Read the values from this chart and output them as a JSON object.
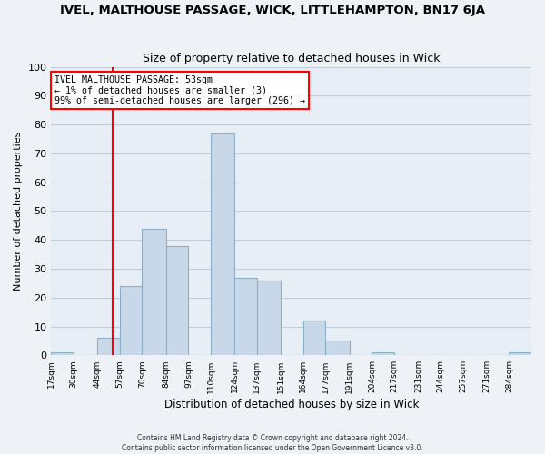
{
  "title": "IVEL, MALTHOUSE PASSAGE, WICK, LITTLEHAMPTON, BN17 6JA",
  "subtitle": "Size of property relative to detached houses in Wick",
  "xlabel": "Distribution of detached houses by size in Wick",
  "ylabel": "Number of detached properties",
  "bin_labels": [
    "17sqm",
    "30sqm",
    "44sqm",
    "57sqm",
    "70sqm",
    "84sqm",
    "97sqm",
    "110sqm",
    "124sqm",
    "137sqm",
    "151sqm",
    "164sqm",
    "177sqm",
    "191sqm",
    "204sqm",
    "217sqm",
    "231sqm",
    "244sqm",
    "257sqm",
    "271sqm",
    "284sqm"
  ],
  "bin_edges": [
    17,
    30,
    44,
    57,
    70,
    84,
    97,
    110,
    124,
    137,
    151,
    164,
    177,
    191,
    204,
    217,
    231,
    244,
    257,
    271,
    284
  ],
  "bar_heights": [
    1,
    0,
    6,
    24,
    44,
    38,
    0,
    77,
    27,
    26,
    0,
    12,
    5,
    0,
    1,
    0,
    0,
    0,
    0,
    0,
    1
  ],
  "bar_color": "#c8d8e8",
  "bar_edgecolor": "#8aafc8",
  "vline_x": 53,
  "vline_color": "red",
  "annotation_title": "IVEL MALTHOUSE PASSAGE: 53sqm",
  "annotation_line1": "← 1% of detached houses are smaller (3)",
  "annotation_line2": "99% of semi-detached houses are larger (296) →",
  "annotation_box_edgecolor": "red",
  "ylim": [
    0,
    100
  ],
  "yticks": [
    0,
    10,
    20,
    30,
    40,
    50,
    60,
    70,
    80,
    90,
    100
  ],
  "footer_line1": "Contains HM Land Registry data © Crown copyright and database right 2024.",
  "footer_line2": "Contains public sector information licensed under the Open Government Licence v3.0.",
  "background_color": "#eef2f7",
  "plot_background_color": "#e8eef5",
  "grid_color": "#c0ccd8"
}
